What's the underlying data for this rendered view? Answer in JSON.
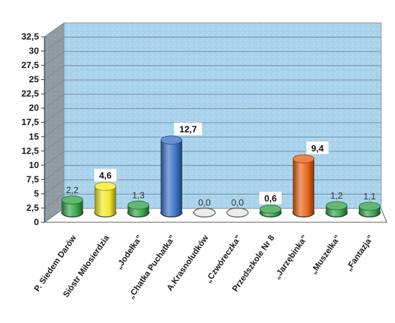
{
  "chart_data": {
    "type": "bar",
    "style": "3d-cylinder",
    "categories": [
      "P. Siedem Darów",
      "Sióstr Miłosierdzia",
      "„Jodełka”",
      "„Chatka Puchatka”",
      "A.Krasnoludków",
      "„Czwóreczka”",
      "Przedszkole Nr 8",
      "„Jarzębinka”",
      "„Muszelka”",
      "„Fantazja”"
    ],
    "values": [
      2.2,
      4.6,
      1.3,
      12.7,
      0.0,
      0.0,
      0.6,
      9.4,
      1.2,
      1.1
    ],
    "data_labels": [
      "2,2",
      "4,6",
      "1,3",
      "12,7",
      "0,0",
      "0,0",
      "0,6",
      "9,4",
      "1,2",
      "1,1"
    ],
    "label_emphasis": [
      false,
      true,
      false,
      true,
      false,
      false,
      true,
      true,
      false,
      false
    ],
    "colors": [
      "#3aa84e",
      "#f2ea2a",
      "#3aa84e",
      "#3f75c9",
      "#e8e8e8",
      "#e8e8e8",
      "#3aa84e",
      "#e8661c",
      "#3aa84e",
      "#3aa84e"
    ],
    "ylim": [
      0,
      32.5
    ],
    "yticks": [
      0,
      2.5,
      5,
      7.5,
      10,
      12.5,
      15,
      17.5,
      20,
      22.5,
      25,
      27.5,
      30,
      32.5
    ],
    "ytick_labels": [
      "0",
      "2,5",
      "5",
      "7,5",
      "10",
      "12,5",
      "15",
      "17,5",
      "20",
      "22,5",
      "25",
      "27,5",
      "30",
      "32,5"
    ],
    "grid": true,
    "title": "",
    "xlabel": "",
    "ylabel": "",
    "wall_color": "#a9d3ec"
  }
}
